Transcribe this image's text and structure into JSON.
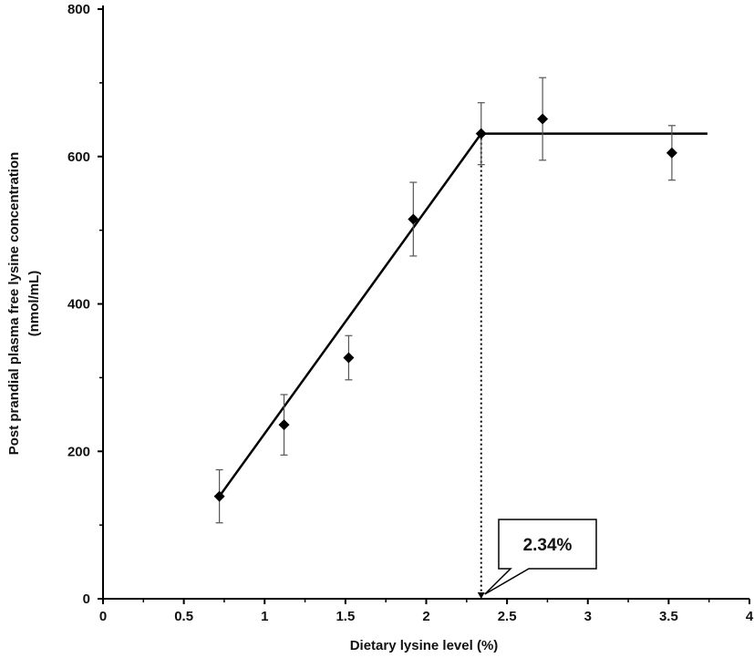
{
  "chart_data": {
    "type": "scatter",
    "xlabel": "Dietary lysine level (%)",
    "ylabel": [
      "Post prandial plasma free lysine concentration",
      "(nmol/mL)"
    ],
    "xlim": [
      0,
      4
    ],
    "ylim": [
      0,
      800
    ],
    "x_ticks": [
      0,
      0.5,
      1,
      1.5,
      2,
      2.5,
      3,
      3.5,
      4
    ],
    "x_tick_labels": [
      "0",
      "0.5",
      "1",
      "1.5",
      "2",
      "2.5",
      "3",
      "3.5",
      "4"
    ],
    "y_ticks": [
      0,
      200,
      400,
      600,
      800
    ],
    "y_tick_labels": [
      "0",
      "200",
      "400",
      "600",
      "800"
    ],
    "grid": false,
    "legend": "none",
    "series": [
      {
        "marker": "diamond",
        "color": "#000000",
        "points": [
          {
            "x": 0.72,
            "y": 139,
            "err": 36
          },
          {
            "x": 1.12,
            "y": 236,
            "err": 41
          },
          {
            "x": 1.52,
            "y": 327,
            "err": 30
          },
          {
            "x": 1.92,
            "y": 515,
            "err": 50
          },
          {
            "x": 2.34,
            "y": 631,
            "err": 42
          },
          {
            "x": 2.72,
            "y": 651,
            "err": 56
          },
          {
            "x": 3.52,
            "y": 605,
            "err": 37
          }
        ]
      }
    ],
    "broken_line": {
      "points": [
        [
          0.72,
          139
        ],
        [
          2.34,
          631
        ],
        [
          3.74,
          631
        ]
      ],
      "color": "#000000"
    },
    "breakpoint": {
      "x": 2.34,
      "y": 631
    },
    "annotation": {
      "text": "2.34%",
      "x": 2.34
    }
  }
}
